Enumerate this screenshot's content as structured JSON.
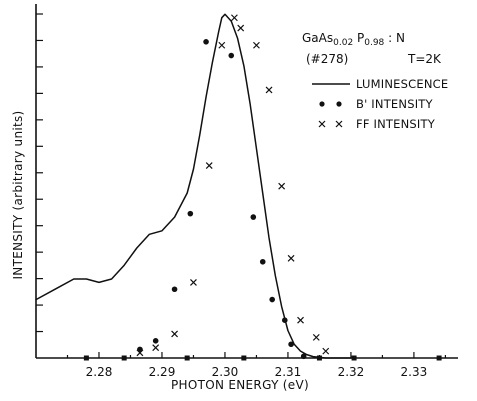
{
  "chart_data": {
    "type": "line",
    "title": "",
    "xlabel": "PHOTON ENERGY (eV)",
    "ylabel": "INTENSITY (arbitrary units)",
    "xlim": [
      2.27,
      2.337
    ],
    "ylim": [
      0,
      1.03
    ],
    "x_ticks": [
      2.28,
      2.29,
      2.3,
      2.31,
      2.32,
      2.33
    ],
    "x_tick_labels": [
      "2.28",
      "2.29",
      "2.30",
      "2.31",
      "2.32",
      "2.33"
    ],
    "y_ticks_count": 13,
    "grid": false,
    "legend": {
      "placement": "top-right",
      "annotation_lines": [
        "GaAs0.02 P0.98 : N",
        "(#278)",
        "T=2K"
      ],
      "entries": [
        {
          "label": "LUMINESCENCE",
          "marker": "line"
        },
        {
          "label": "B' INTENSITY",
          "marker": "dot"
        },
        {
          "label": "FF INTENSITY",
          "marker": "cross"
        }
      ]
    },
    "series": [
      {
        "name": "LUMINESCENCE",
        "kind": "line",
        "x": [
          2.27,
          2.273,
          2.276,
          2.278,
          2.28,
          2.282,
          2.284,
          2.286,
          2.288,
          2.29,
          2.292,
          2.294,
          2.295,
          2.296,
          2.297,
          2.298,
          2.299,
          2.2995,
          2.3,
          2.301,
          2.302,
          2.303,
          2.304,
          2.305,
          2.306,
          2.307,
          2.308,
          2.309,
          2.31,
          2.311,
          2.312,
          2.313,
          2.314,
          2.316,
          2.318,
          2.32
        ],
        "y": [
          0.17,
          0.2,
          0.23,
          0.23,
          0.22,
          0.23,
          0.27,
          0.32,
          0.36,
          0.37,
          0.41,
          0.48,
          0.55,
          0.65,
          0.76,
          0.86,
          0.95,
          0.99,
          1.0,
          0.98,
          0.93,
          0.85,
          0.74,
          0.61,
          0.48,
          0.35,
          0.24,
          0.15,
          0.08,
          0.04,
          0.02,
          0.01,
          0.004,
          0.0,
          0.0,
          0.0
        ]
      },
      {
        "name": "B' INTENSITY",
        "kind": "scatter",
        "marker": "dot",
        "x": [
          2.2865,
          2.289,
          2.292,
          2.2945,
          2.297,
          2.301,
          2.3045,
          2.306,
          2.3075,
          2.3095,
          2.3105,
          2.3125
        ],
        "y": [
          0.025,
          0.05,
          0.2,
          0.42,
          0.92,
          0.88,
          0.41,
          0.28,
          0.17,
          0.11,
          0.04,
          0.005
        ]
      },
      {
        "name": "FF INTENSITY",
        "kind": "scatter",
        "marker": "cross",
        "x": [
          2.2865,
          2.289,
          2.292,
          2.295,
          2.2975,
          2.2995,
          2.3015,
          2.3025,
          2.305,
          2.307,
          2.309,
          2.3105,
          2.312,
          2.3145,
          2.316
        ],
        "y": [
          0.015,
          0.03,
          0.07,
          0.22,
          0.56,
          0.91,
          0.99,
          0.96,
          0.91,
          0.78,
          0.5,
          0.29,
          0.11,
          0.06,
          0.02
        ]
      },
      {
        "name": "",
        "kind": "baseline-markers",
        "marker": "square",
        "x": [
          2.278,
          2.284,
          2.294,
          2.303,
          2.315,
          2.3205,
          2.334
        ],
        "y": [
          0,
          0,
          0,
          0,
          0,
          0,
          0
        ]
      }
    ]
  }
}
